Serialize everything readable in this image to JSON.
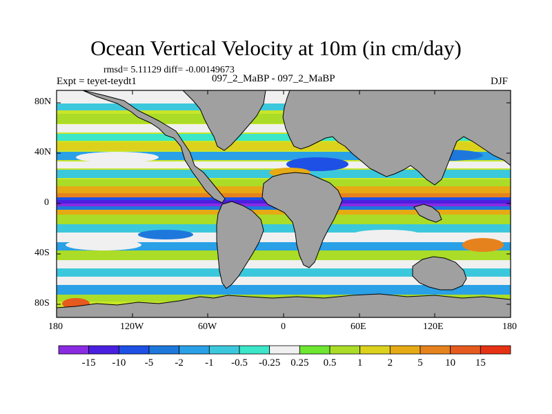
{
  "title": "Ocean Vertical Velocity at 10m (in cm/day)",
  "stats": "rmsd= 5.11129  diff= -0.00149673",
  "expt": "Expt = teyet-teydt1",
  "comparison": "097_2_MaBP - 097_2_MaBP",
  "season": "DJF",
  "lat_labels": [
    "80N",
    "40N",
    "0",
    "40S",
    "80S"
  ],
  "lon_labels": [
    "180",
    "120W",
    "60W",
    "0",
    "60E",
    "120E",
    "180"
  ],
  "colorbar": {
    "labels": [
      "-15",
      "-10",
      "-5",
      "-2",
      "-1",
      "-0.5",
      "-0.25",
      "0.25",
      "0.5",
      "1",
      "2",
      "5",
      "10",
      "15"
    ],
    "colors": [
      "#8a2be2",
      "#4b1fe0",
      "#1e50e6",
      "#1e78dc",
      "#2aa0e6",
      "#3cc8dc",
      "#3ce6c8",
      "#f0f0f0",
      "#6ee632",
      "#aadc28",
      "#dcd21e",
      "#e6aa14",
      "#e6821e",
      "#e65a1e",
      "#e63214"
    ]
  },
  "colors": {
    "land": "#a0a0a0",
    "ocean_band": "#aadc28"
  }
}
